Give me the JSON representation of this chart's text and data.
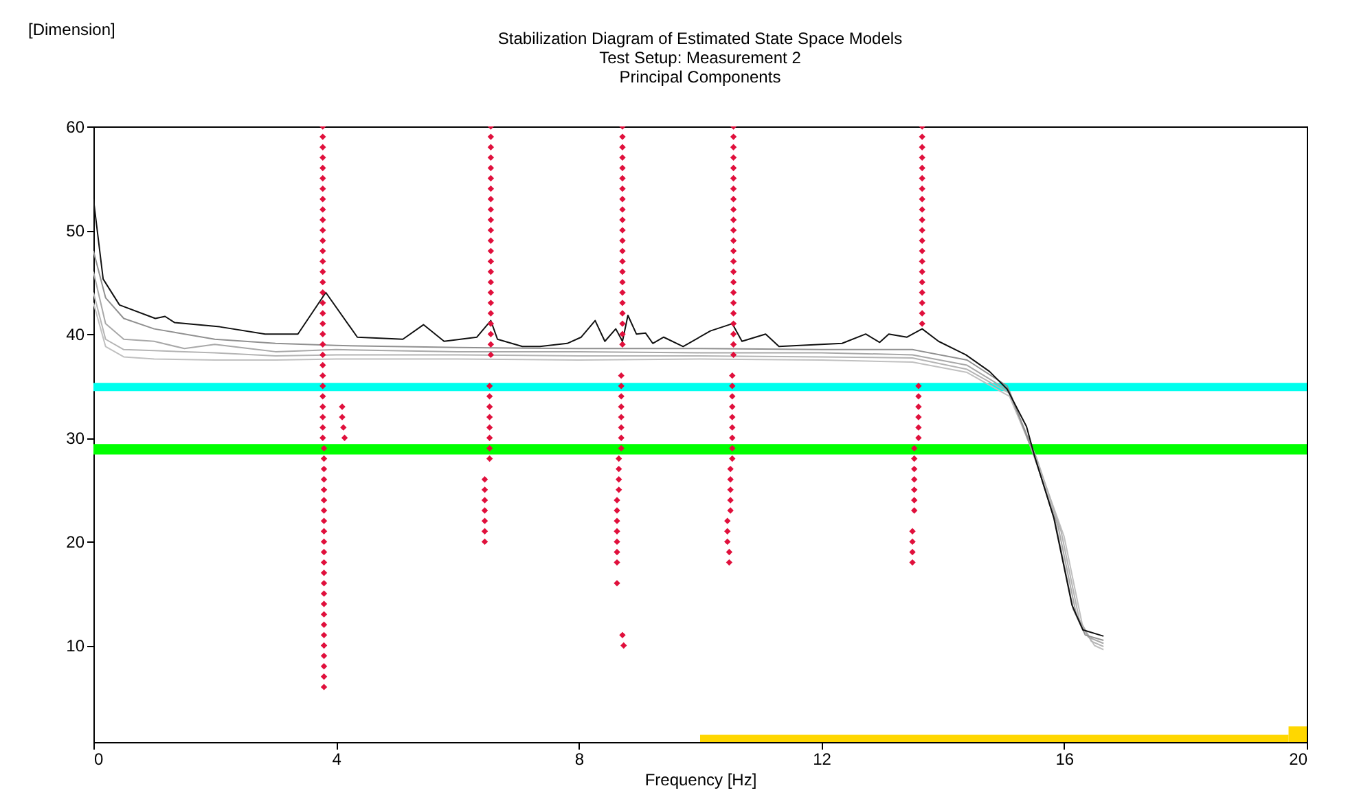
{
  "chart_data": {
    "type": "line",
    "title": "Stabilization Diagram of Estimated State Space Models",
    "subtitle": "Test Setup: Measurement 2\nPrincipal Components",
    "xlabel": "Frequency [Hz]",
    "ylabel": "[Dimension]",
    "xlim": [
      0,
      20
    ],
    "xticks": [
      0,
      4,
      8,
      12,
      16,
      20
    ],
    "ylim": [
      0.7,
      60
    ],
    "yticks": [
      10,
      20,
      30,
      40,
      50,
      60
    ],
    "grid": false,
    "bands": [
      {
        "axis": "y",
        "from": 34.5,
        "to": 35.3,
        "color": "#00ffee"
      },
      {
        "axis": "y",
        "from": 28.4,
        "to": 29.4,
        "color": "#00ff00"
      }
    ],
    "series": [
      {
        "color": "#c0c0c0",
        "x": [
          0,
          0.2,
          0.5,
          1,
          2,
          3,
          4,
          6,
          8,
          10,
          12,
          13.5,
          14.4,
          15.1,
          15.55,
          16,
          16.3,
          16.5,
          16.65
        ],
        "values": [
          43,
          38.8,
          37.8,
          37.6,
          37.5,
          37.5,
          37.6,
          37.6,
          37.5,
          37.6,
          37.5,
          37.3,
          36.3,
          34,
          27.8,
          20.5,
          12,
          10,
          9.6
        ]
      },
      {
        "color": "#b4b4b4",
        "x": [
          0,
          0.2,
          0.5,
          1,
          2,
          3,
          4,
          6,
          8,
          10,
          12,
          13.5,
          14.4,
          15.1,
          15.55,
          15.95,
          16.25,
          16.45,
          16.65
        ],
        "values": [
          44,
          39.5,
          38.5,
          38.4,
          38.2,
          37.9,
          38,
          38,
          37.9,
          37.9,
          37.8,
          37.7,
          36.6,
          34.3,
          28,
          21,
          12.5,
          10.4,
          9.9
        ]
      },
      {
        "color": "#a8a8a8",
        "x": [
          0,
          0.2,
          0.5,
          1,
          1.5,
          2,
          3,
          4,
          6,
          8,
          10,
          12,
          13.5,
          14.4,
          15.1,
          15.5,
          15.9,
          16.2,
          16.4,
          16.65
        ],
        "values": [
          46,
          41,
          39.5,
          39.3,
          38.6,
          39,
          38.3,
          38.5,
          38.3,
          38.3,
          38.2,
          38.2,
          38,
          37,
          34.5,
          28.3,
          21.5,
          13,
          10.8,
          10.2
        ]
      },
      {
        "color": "#909090",
        "x": [
          0,
          0.2,
          0.5,
          1,
          2,
          3,
          4,
          6,
          8,
          10,
          12,
          13.5,
          14.4,
          15.06,
          15.5,
          15.85,
          16.15,
          16.35,
          16.65
        ],
        "values": [
          48,
          43.5,
          41.5,
          40.5,
          39.5,
          39.1,
          38.9,
          38.7,
          38.6,
          38.6,
          38.5,
          38.5,
          37.5,
          35,
          28.5,
          22,
          13.5,
          11,
          10.5
        ]
      },
      {
        "color": "#101010",
        "x": [
          0,
          0.16,
          0.43,
          1.02,
          1.18,
          1.34,
          2.08,
          2.83,
          3.37,
          3.83,
          4.35,
          5.1,
          5.44,
          5.78,
          6.32,
          6.55,
          6.66,
          7.07,
          7.36,
          7.81,
          8.04,
          8.27,
          8.43,
          8.61,
          8.72,
          8.81,
          8.95,
          9.1,
          9.22,
          9.4,
          9.72,
          10.17,
          10.53,
          10.69,
          11.08,
          11.3,
          12.34,
          12.73,
          12.96,
          13.11,
          13.41,
          13.66,
          13.93,
          14.38,
          14.77,
          15.06,
          15.38,
          15.52,
          15.83,
          16.13,
          16.31,
          16.65
        ],
        "values": [
          53,
          45.3,
          42.8,
          41.5,
          41.7,
          41.1,
          40.7,
          40,
          40,
          44,
          39.7,
          39.5,
          40.9,
          39.3,
          39.7,
          41.3,
          39.5,
          38.8,
          38.8,
          39.1,
          39.7,
          41.3,
          39.3,
          40.5,
          39.3,
          41.8,
          40,
          40.1,
          39.1,
          39.7,
          38.8,
          40.3,
          41,
          39.3,
          40,
          38.8,
          39.1,
          40,
          39.2,
          40,
          39.7,
          40.5,
          39.3,
          38,
          36.4,
          34.7,
          31.1,
          28.1,
          22.3,
          13.9,
          11.5,
          10.9
        ]
      },
      {
        "type": "area",
        "color": "#ffd700",
        "x": [
          10,
          19.7,
          20
        ],
        "values": [
          1.4,
          2.2,
          2.2
        ]
      },
      {
        "type": "scatter",
        "color": "#e0103c",
        "marker": "diamond",
        "x": [
          3.78,
          3.78,
          3.78,
          3.78,
          3.78,
          3.78,
          3.78,
          3.78,
          3.78,
          3.78,
          3.78,
          3.78,
          3.78,
          3.78,
          3.78,
          3.78,
          3.78,
          3.78,
          3.78,
          3.78,
          3.78,
          3.78,
          3.78,
          3.78,
          3.78,
          3.78,
          3.78,
          3.78,
          3.78,
          3.78,
          3.78,
          3.8,
          3.8,
          3.8,
          3.8,
          3.8,
          3.8,
          3.8,
          3.8,
          3.8,
          3.8,
          3.8,
          3.8,
          3.8,
          3.8,
          3.8,
          3.8,
          3.8,
          3.8,
          3.8,
          3.8,
          3.8,
          3.8,
          3.8,
          3.8
        ],
        "values": [
          60,
          59,
          58,
          57,
          56,
          55,
          54,
          53,
          52,
          51,
          50,
          49,
          48,
          47,
          46,
          45,
          44,
          43,
          42,
          41,
          40,
          39,
          38,
          37,
          36,
          35,
          34,
          33,
          32,
          31,
          30,
          29,
          28,
          27,
          26,
          25,
          24,
          23,
          22,
          21,
          20,
          19,
          18,
          17,
          16,
          15,
          14,
          13,
          12,
          11,
          10,
          9,
          8,
          7,
          6
        ]
      },
      {
        "type": "scatter",
        "color": "#e0103c",
        "marker": "diamond",
        "x": [
          4.1,
          4.1,
          4.12,
          4.14
        ],
        "values": [
          33,
          32,
          31,
          30
        ]
      },
      {
        "type": "scatter",
        "color": "#e0103c",
        "marker": "diamond",
        "x": [
          6.55,
          6.55,
          6.55,
          6.55,
          6.55,
          6.55,
          6.55,
          6.55,
          6.55,
          6.55,
          6.55,
          6.55,
          6.55,
          6.55,
          6.55,
          6.55,
          6.55,
          6.55,
          6.55,
          6.55,
          6.55,
          6.55,
          6.55,
          6.53,
          6.53,
          6.53,
          6.53,
          6.53,
          6.53,
          6.53,
          6.53,
          6.45,
          6.45,
          6.45,
          6.45,
          6.45,
          6.45,
          6.45
        ],
        "values": [
          60,
          59,
          58,
          57,
          56,
          55,
          54,
          53,
          52,
          51,
          50,
          49,
          48,
          47,
          46,
          45,
          44,
          43,
          42,
          41,
          40,
          39,
          38,
          35,
          34,
          33,
          32,
          31,
          30,
          29,
          28,
          26,
          25,
          24,
          23,
          22,
          21,
          20
        ]
      },
      {
        "type": "scatter",
        "color": "#e0103c",
        "marker": "diamond",
        "x": [
          8.72,
          8.72,
          8.72,
          8.72,
          8.72,
          8.72,
          8.72,
          8.72,
          8.72,
          8.72,
          8.72,
          8.72,
          8.72,
          8.72,
          8.72,
          8.72,
          8.72,
          8.72,
          8.72,
          8.72,
          8.72,
          8.72,
          8.7,
          8.7,
          8.7,
          8.7,
          8.7,
          8.7,
          8.7,
          8.7,
          8.66,
          8.66,
          8.66,
          8.66,
          8.63,
          8.63,
          8.63,
          8.63,
          8.63,
          8.63,
          8.63,
          8.63,
          8.72,
          8.74
        ],
        "values": [
          60,
          59,
          58,
          57,
          56,
          55,
          54,
          53,
          52,
          51,
          50,
          49,
          48,
          47,
          46,
          45,
          44,
          43,
          42,
          41,
          40,
          39,
          36,
          35,
          34,
          33,
          32,
          31,
          30,
          29,
          28,
          27,
          26,
          25,
          24,
          23,
          22,
          21,
          20,
          19,
          18,
          16,
          11,
          10
        ]
      },
      {
        "type": "scatter",
        "color": "#e0103c",
        "marker": "diamond",
        "x": [
          10.55,
          10.55,
          10.55,
          10.55,
          10.55,
          10.55,
          10.55,
          10.55,
          10.55,
          10.55,
          10.55,
          10.55,
          10.55,
          10.55,
          10.55,
          10.55,
          10.55,
          10.55,
          10.55,
          10.55,
          10.55,
          10.55,
          10.55,
          10.53,
          10.53,
          10.53,
          10.53,
          10.53,
          10.53,
          10.53,
          10.53,
          10.53,
          10.5,
          10.5,
          10.5,
          10.5,
          10.5,
          10.45,
          10.45,
          10.45,
          10.48,
          10.48
        ],
        "values": [
          60,
          59,
          58,
          57,
          56,
          55,
          54,
          53,
          52,
          51,
          50,
          49,
          48,
          47,
          46,
          45,
          44,
          43,
          42,
          41,
          40,
          39,
          38,
          36,
          35,
          34,
          33,
          32,
          31,
          30,
          29,
          28,
          27,
          26,
          25,
          24,
          23,
          22,
          21,
          20,
          19,
          18
        ]
      },
      {
        "type": "scatter",
        "color": "#e0103c",
        "marker": "diamond",
        "x": [
          13.66,
          13.66,
          13.66,
          13.66,
          13.66,
          13.66,
          13.66,
          13.66,
          13.66,
          13.66,
          13.66,
          13.66,
          13.66,
          13.66,
          13.66,
          13.66,
          13.66,
          13.66,
          13.66,
          13.66,
          13.6,
          13.6,
          13.6,
          13.6,
          13.6,
          13.6,
          13.53,
          13.53,
          13.53,
          13.53,
          13.53,
          13.53,
          13.53,
          13.5,
          13.5,
          13.5,
          13.5
        ],
        "values": [
          60,
          59,
          58,
          57,
          56,
          55,
          54,
          53,
          52,
          51,
          50,
          49,
          48,
          47,
          46,
          45,
          44,
          43,
          42,
          41,
          35,
          34,
          33,
          32,
          31,
          30,
          29,
          28,
          27,
          26,
          25,
          24,
          23,
          21,
          20,
          19,
          18
        ]
      }
    ]
  }
}
